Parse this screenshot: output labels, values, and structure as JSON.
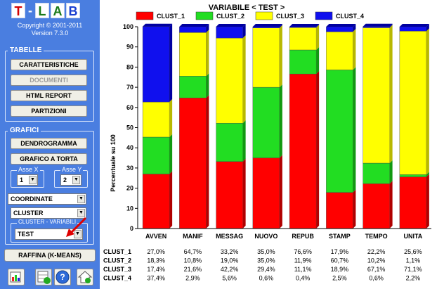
{
  "app": {
    "logo_letters": [
      "T",
      "-",
      "L",
      "A",
      "B"
    ],
    "copyright": "Copyright © 2001-2011",
    "version": "Version 7.3.0"
  },
  "tabelle": {
    "title": "TABELLE",
    "buttons": [
      {
        "label": "CARATTERISTICHE",
        "enabled": true
      },
      {
        "label": "DOCUMENTI",
        "enabled": false
      },
      {
        "label": "HTML REPORT",
        "enabled": true
      },
      {
        "label": "PARTIZIONI",
        "enabled": true
      }
    ]
  },
  "grafici": {
    "title": "GRAFICI",
    "buttons": [
      {
        "label": "DENDROGRAMMA"
      },
      {
        "label": "GRAFICO A TORTA"
      }
    ],
    "asse_x": {
      "label": "Asse X",
      "value": "1"
    },
    "asse_y": {
      "label": "Asse Y",
      "value": "2"
    },
    "coordinate": "COORDINATE",
    "cluster": "CLUSTER",
    "cluster_variabili": {
      "label": "CLUSTER - VARIABILI",
      "value": "TEST"
    }
  },
  "raffina_label": "RAFFINA (K-MEANS)",
  "toolbar_icons": [
    "chart-export-icon",
    "help-icon",
    "home-icon"
  ],
  "colors": {
    "CLUST_1": "#ff0000",
    "CLUST_2": "#22dd22",
    "CLUST_3": "#ffff00",
    "CLUST_4": "#1010ee"
  },
  "chart_data": {
    "type": "bar",
    "stacked": true,
    "title": "VARIABILE < TEST >",
    "ylabel": "Percentuale su 100",
    "ylim": [
      0,
      100
    ],
    "yticks": [
      0,
      10,
      20,
      30,
      40,
      50,
      60,
      70,
      80,
      90,
      100
    ],
    "legend_position": "top",
    "categories": [
      "AVVEN",
      "MANIF",
      "MESSAG",
      "NUOVO",
      "REPUB",
      "STAMP",
      "TEMPO",
      "UNITA"
    ],
    "series": [
      {
        "name": "CLUST_1",
        "values": [
          27.0,
          64.7,
          33.2,
          35.0,
          76.6,
          17.9,
          22.2,
          25.6
        ],
        "labels": [
          "27,0%",
          "64,7%",
          "33,2%",
          "35,0%",
          "76,6%",
          "17,9%",
          "22,2%",
          "25,6%"
        ]
      },
      {
        "name": "CLUST_2",
        "values": [
          18.3,
          10.8,
          19.0,
          35.0,
          11.9,
          60.7,
          10.2,
          1.1
        ],
        "labels": [
          "18,3%",
          "10,8%",
          "19,0%",
          "35,0%",
          "11,9%",
          "60,7%",
          "10,2%",
          "1,1%"
        ]
      },
      {
        "name": "CLUST_3",
        "values": [
          17.4,
          21.6,
          42.2,
          29.4,
          11.1,
          18.9,
          67.1,
          71.1
        ],
        "labels": [
          "17,4%",
          "21,6%",
          "42,2%",
          "29,4%",
          "11,1%",
          "18,9%",
          "67,1%",
          "71,1%"
        ]
      },
      {
        "name": "CLUST_4",
        "values": [
          37.4,
          2.9,
          5.6,
          0.6,
          0.4,
          2.5,
          0.6,
          2.2
        ],
        "labels": [
          "37,4%",
          "2,9%",
          "5,6%",
          "0,6%",
          "0,4%",
          "2,5%",
          "0,6%",
          "2,2%"
        ]
      }
    ]
  }
}
